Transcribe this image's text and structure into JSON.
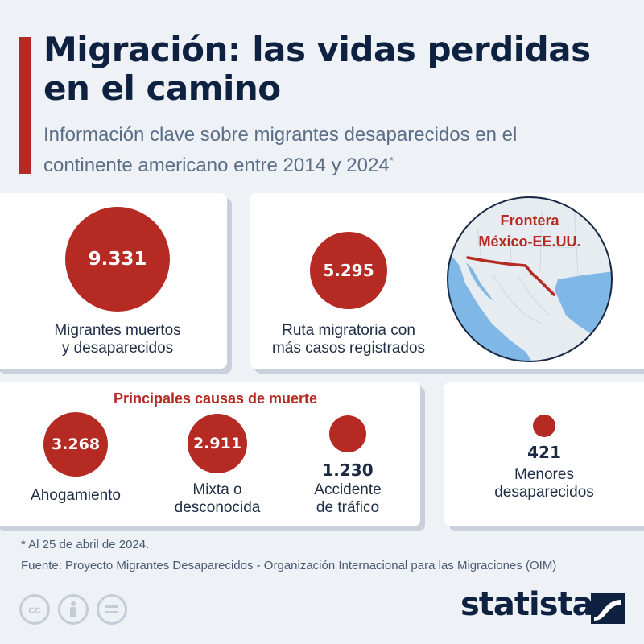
{
  "header": {
    "title": "Migración: las vidas perdidas en el camino",
    "subtitle": "Información clave sobre migrantes desaparecidos en el continente americano entre 2014 y 2024",
    "subtitle_mark": "*"
  },
  "card_total": {
    "value": "9.331",
    "label_line1": "Migrantes muertos",
    "label_line2": "y desaparecidos"
  },
  "card_route": {
    "value": "5.295",
    "label_line1": "Ruta migratoria con",
    "label_line2": "más casos registrados",
    "map_label_line1": "Frontera",
    "map_label_line2": "México-EE.UU."
  },
  "causes": {
    "title": "Principales causas de muerte",
    "items": [
      {
        "value": "3.268",
        "label_line1": "Ahogamiento",
        "label_line2": ""
      },
      {
        "value": "2.911",
        "label_line1": "Mixta o",
        "label_line2": "desconocida"
      },
      {
        "value": "1.230",
        "label_line1": "Accidente",
        "label_line2": "de tráfico"
      }
    ]
  },
  "card_minors": {
    "value": "421",
    "label_line1": "Menores",
    "label_line2": "desaparecidos"
  },
  "footer": {
    "note": "* Al 25 de abril de 2024.",
    "source": "Fuente: Proyecto Migrantes Desaparecidos - Organización Internacional para las Migraciones (OIM)",
    "license_icons": [
      "cc-icon",
      "attribution-icon",
      "no-derivatives-icon"
    ],
    "cc_glyph": "cc",
    "brand": "statista"
  },
  "colors": {
    "accent": "#b52a22",
    "title": "#0f2140",
    "subtitle": "#5b6e86",
    "map_water": "#7fb8e6",
    "map_land": "#e7ecf1"
  }
}
